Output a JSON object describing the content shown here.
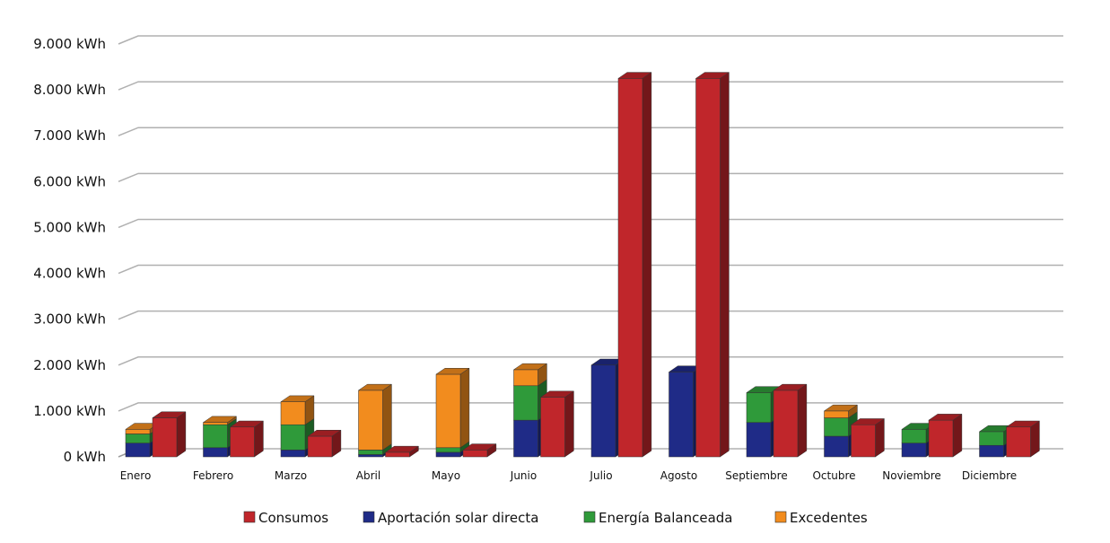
{
  "chart_data": {
    "type": "bar",
    "stacked_3d": true,
    "categories": [
      "Enero",
      "Febrero",
      "Marzo",
      "Abril",
      "Mayo",
      "Junio",
      "Julio",
      "Agosto",
      "Septiembre",
      "Octubre",
      "Noviembre",
      "Diciembre"
    ],
    "y_tick_labels": [
      "0 kWh",
      "1.000 kWh",
      "2.000 kWh",
      "3.000 kWh",
      "4.000 kWh",
      "5.000 kWh",
      "6.000 kWh",
      "7.000 kWh",
      "8.000 kWh",
      "9.000 kWh"
    ],
    "ylim": [
      0,
      9000
    ],
    "grid": true,
    "legend_position": "bottom",
    "series": [
      {
        "name": "Consumos",
        "color": "#c0262b",
        "stack": "consumo",
        "values": [
          850,
          650,
          450,
          100,
          150,
          1300,
          8250,
          8250,
          1450,
          700,
          800,
          650
        ]
      },
      {
        "name": "Aportación solar directa",
        "color": "#1f2b87",
        "stack": "solar",
        "values": [
          300,
          200,
          150,
          50,
          100,
          800,
          2000,
          1850,
          750,
          450,
          300,
          250
        ]
      },
      {
        "name": "Energía Balanceada",
        "color": "#2f9a3a",
        "stack": "solar",
        "values": [
          200,
          500,
          550,
          100,
          100,
          750,
          0,
          0,
          650,
          400,
          300,
          300
        ]
      },
      {
        "name": "Excedentes",
        "color": "#f28c1e",
        "stack": "solar",
        "values": [
          100,
          50,
          500,
          1300,
          1600,
          350,
          0,
          0,
          0,
          150,
          0,
          0
        ]
      }
    ]
  }
}
